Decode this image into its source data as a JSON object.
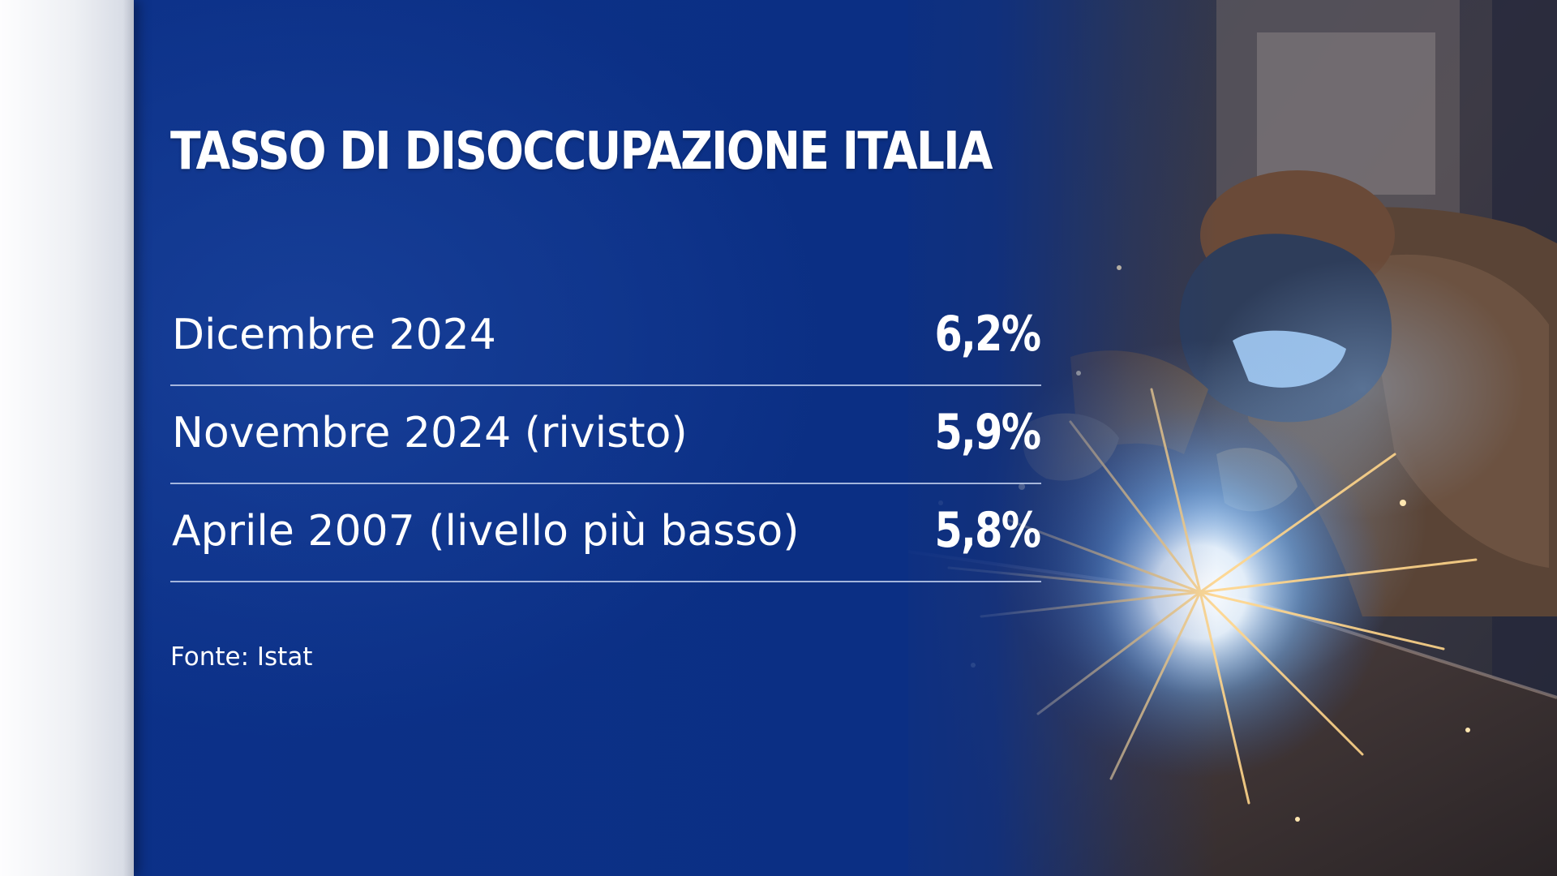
{
  "graphic": {
    "title": "TASSO DI DISOCCUPAZIONE ITALIA",
    "rows": [
      {
        "label": "Dicembre 2024",
        "value": "6,2%"
      },
      {
        "label": "Novembre 2024 (rivisto)",
        "value": "5,9%"
      },
      {
        "label": "Aprile 2007 (livello più basso)",
        "value": "5,8%"
      }
    ],
    "source": "Fonte: Istat"
  },
  "colors": {
    "background_blue": "#0b2f84",
    "text": "#ffffff",
    "divider": "#becdeb",
    "sidebar": "#eef0f4"
  },
  "image": {
    "subject": "welder-with-sparks-photo"
  }
}
